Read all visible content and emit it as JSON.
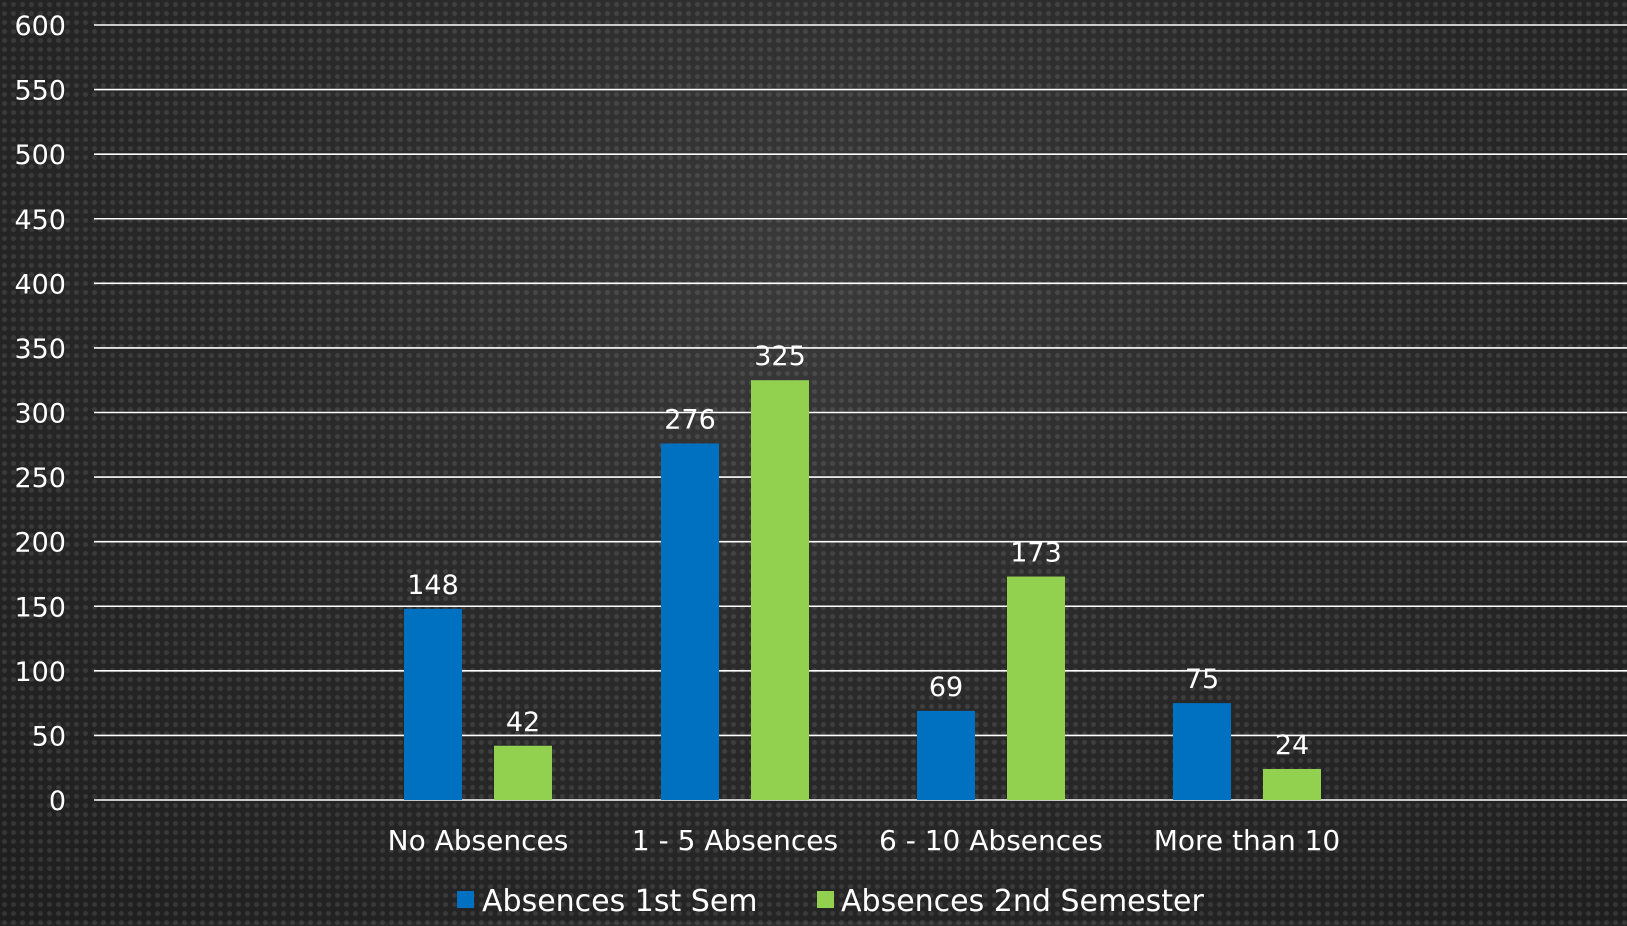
{
  "chart_data": {
    "type": "bar",
    "title": "",
    "xlabel": "",
    "ylabel": "",
    "categories": [
      "No Absences",
      "1 - 5 Absences",
      "6 - 10 Absences",
      "More than 10"
    ],
    "series": [
      {
        "name": "Absences 1st Sem",
        "values": [
          148,
          276,
          69,
          75
        ],
        "color": "#0070c0"
      },
      {
        "name": "Absences 2nd Semester",
        "values": [
          42,
          325,
          173,
          24
        ],
        "color": "#92d050"
      }
    ],
    "ylim": [
      0,
      600
    ],
    "yticks": [
      "0",
      "50",
      "100",
      "150",
      "200",
      "250",
      "300",
      "350",
      "400",
      "450",
      "500",
      "550",
      "600"
    ],
    "grid": true,
    "legend_position": "bottom",
    "gridline_color": "#ffffff"
  }
}
